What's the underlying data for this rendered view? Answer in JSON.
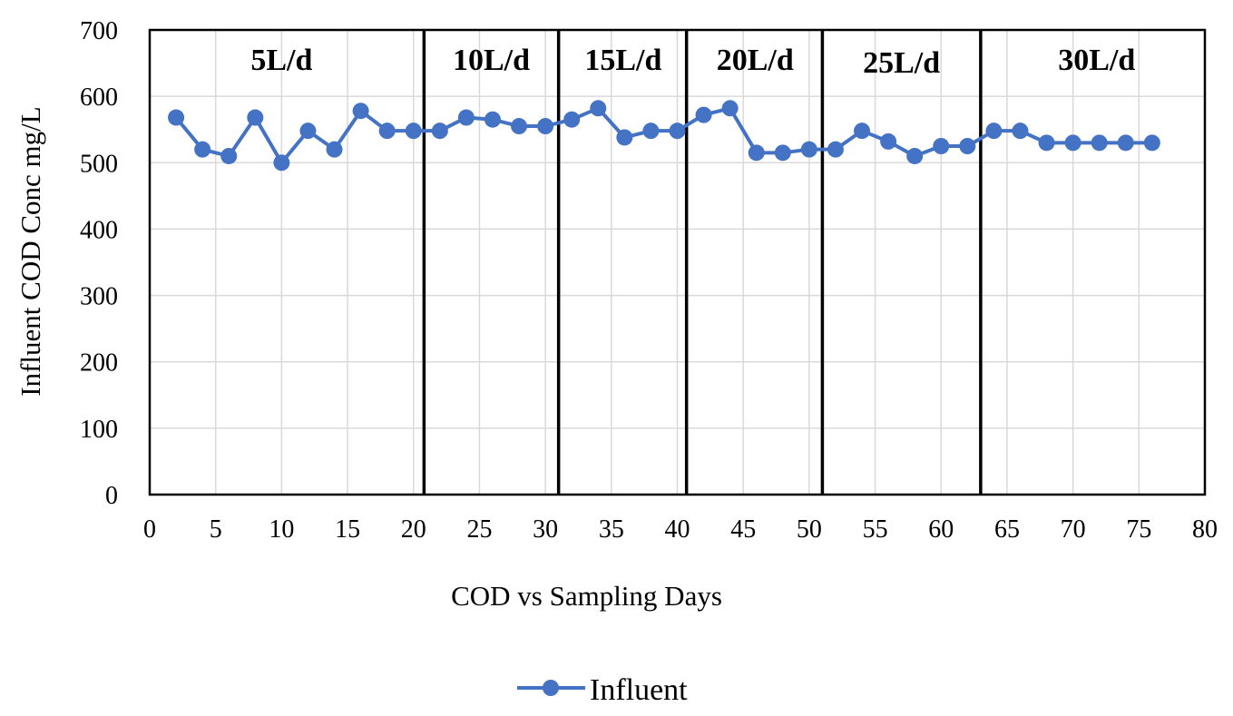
{
  "chart_data": {
    "type": "line",
    "xlabel": "COD vs Sampling Days",
    "ylabel": "Influent COD Conc mg/L",
    "xlim": [
      0,
      80
    ],
    "ylim": [
      0,
      700
    ],
    "x_ticks": [
      0,
      5,
      10,
      15,
      20,
      25,
      30,
      35,
      40,
      45,
      50,
      55,
      60,
      65,
      70,
      75,
      80
    ],
    "y_ticks": [
      0,
      100,
      200,
      300,
      400,
      500,
      600,
      700
    ],
    "grid": true,
    "legend_position": "bottom",
    "series": [
      {
        "name": "Influent",
        "color": "#4472C4",
        "marker": "circle",
        "points": [
          [
            2,
            568
          ],
          [
            4,
            520
          ],
          [
            6,
            510
          ],
          [
            8,
            568
          ],
          [
            10,
            500
          ],
          [
            12,
            548
          ],
          [
            14,
            520
          ],
          [
            16,
            578
          ],
          [
            18,
            548
          ],
          [
            20,
            548
          ],
          [
            22,
            548
          ],
          [
            24,
            568
          ],
          [
            26,
            565
          ],
          [
            28,
            555
          ],
          [
            30,
            555
          ],
          [
            32,
            565
          ],
          [
            34,
            582
          ],
          [
            36,
            538
          ],
          [
            38,
            548
          ],
          [
            40,
            548
          ],
          [
            42,
            572
          ],
          [
            44,
            582
          ],
          [
            46,
            515
          ],
          [
            48,
            515
          ],
          [
            50,
            520
          ],
          [
            52,
            520
          ],
          [
            54,
            548
          ],
          [
            56,
            532
          ],
          [
            58,
            510
          ],
          [
            60,
            525
          ],
          [
            62,
            525
          ],
          [
            64,
            548
          ],
          [
            66,
            548
          ],
          [
            68,
            530
          ],
          [
            70,
            530
          ],
          [
            72,
            530
          ],
          [
            74,
            530
          ],
          [
            76,
            530
          ]
        ]
      }
    ],
    "phase_dividers": [
      20.8,
      31,
      40.7,
      51,
      63
    ],
    "phase_labels": [
      {
        "text": "5L/d",
        "x": 10,
        "y": 640
      },
      {
        "text": "10L/d",
        "x": 25.9,
        "y": 640
      },
      {
        "text": "15L/d",
        "x": 35.9,
        "y": 640
      },
      {
        "text": "20L/d",
        "x": 45.9,
        "y": 640
      },
      {
        "text": "25L/d",
        "x": 57,
        "y": 636
      },
      {
        "text": "30L/d",
        "x": 71.8,
        "y": 640
      }
    ]
  }
}
